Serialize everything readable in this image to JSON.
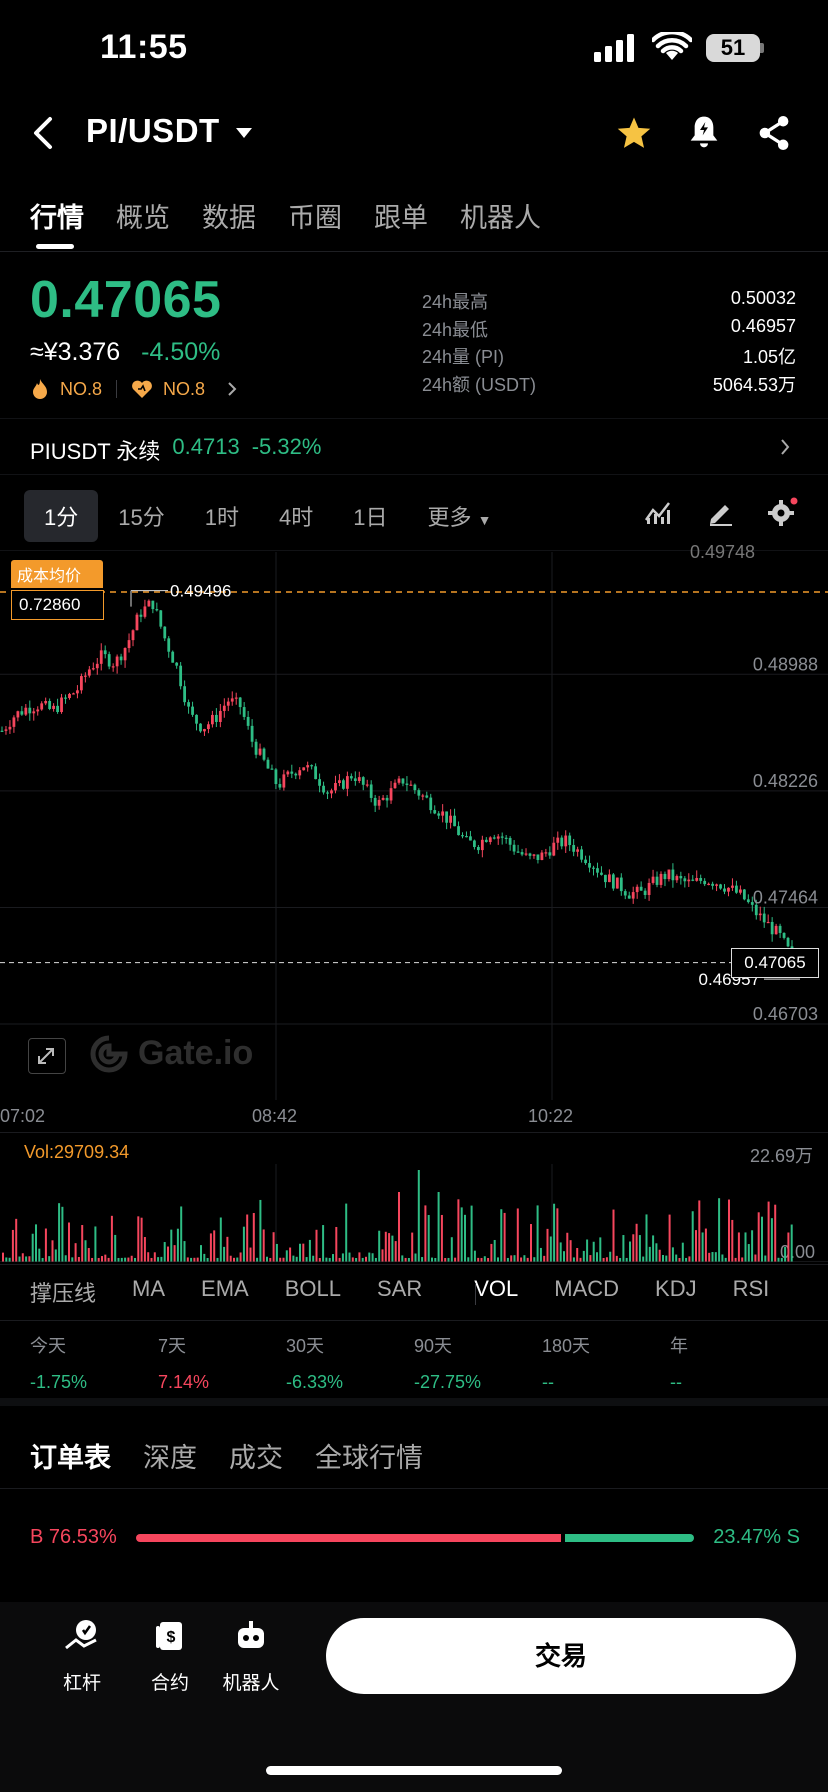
{
  "status_bar": {
    "time": "11:55",
    "battery": "51"
  },
  "header": {
    "pair": "PI/USDT"
  },
  "tabs": [
    "行情",
    "概览",
    "数据",
    "币圈",
    "跟单",
    "机器人"
  ],
  "price": {
    "last": "0.47065",
    "cny": "≈¥3.376",
    "change": "-4.50%",
    "rank_hot": "NO.8",
    "rank_fav": "NO.8"
  },
  "stats": [
    {
      "label": "24h最高",
      "value": "0.50032"
    },
    {
      "label": "24h最低",
      "value": "0.46957"
    },
    {
      "label": "24h量 (PI)",
      "value": "1.05亿"
    },
    {
      "label": "24h额 (USDT)",
      "value": "5064.53万"
    }
  ],
  "perpetual": {
    "name": "PIUSDT 永续",
    "price": "0.4713",
    "change": "-5.32%"
  },
  "intervals": [
    "1分",
    "15分",
    "1时",
    "4时",
    "1日",
    "更多"
  ],
  "chart": {
    "cost_label": "成本均价",
    "cost_value": "0.72860",
    "high_marker": "0.49496",
    "low_marker": "0.46957",
    "last_box": "0.47065",
    "y_labels": [
      "0.49748",
      "0.48988",
      "0.48226",
      "0.47464",
      "0.46703"
    ],
    "x_labels": [
      "07:02",
      "08:42",
      "10:22"
    ],
    "watermark": "Gate.io",
    "vol_label": "Vol:29709.34",
    "vol_max": "22.69万",
    "vol_min": "0.00"
  },
  "chart_data": {
    "type": "candlestick",
    "x_ticks": [
      "07:02",
      "08:42",
      "10:22"
    ],
    "ylim": [
      0.46703,
      0.49748
    ],
    "y_ticks": [
      0.49748,
      0.48988,
      0.48226,
      0.47464,
      0.46703
    ],
    "close_path": [
      0.4858,
      0.4868,
      0.4873,
      0.4875,
      0.4871,
      0.4878,
      0.4885,
      0.4899,
      0.4907,
      0.4902,
      0.4915,
      0.4935,
      0.4942,
      0.4918,
      0.4898,
      0.4868,
      0.486,
      0.4866,
      0.4878,
      0.4874,
      0.485,
      0.4836,
      0.4822,
      0.483,
      0.4836,
      0.4829,
      0.4818,
      0.4822,
      0.483,
      0.482,
      0.481,
      0.4818,
      0.4826,
      0.4819,
      0.4812,
      0.4805,
      0.4796,
      0.4785,
      0.4784,
      0.4792,
      0.4788,
      0.478,
      0.4774,
      0.4776,
      0.4783,
      0.4786,
      0.4779,
      0.4772,
      0.4763,
      0.4758,
      0.4752,
      0.4752,
      0.4759,
      0.4764,
      0.476,
      0.4758,
      0.4761,
      0.4759,
      0.4755,
      0.475,
      0.474,
      0.4732,
      0.4724,
      0.471
    ],
    "high": 0.49496,
    "low": 0.46957,
    "last": 0.47065,
    "cost_average": 0.7286
  },
  "indicators": [
    "撑压线",
    "MA",
    "EMA",
    "BOLL",
    "SAR",
    "VOL",
    "MACD",
    "KDJ",
    "RSI"
  ],
  "performance": [
    {
      "label": "今天",
      "value": "-1.75%",
      "color": "#2ebd85"
    },
    {
      "label": "7天",
      "value": "7.14%",
      "color": "#f6465d"
    },
    {
      "label": "30天",
      "value": "-6.33%",
      "color": "#2ebd85"
    },
    {
      "label": "90天",
      "value": "-27.75%",
      "color": "#2ebd85"
    },
    {
      "label": "180天",
      "value": "--",
      "color": "#2ebd85"
    },
    {
      "label": "年",
      "value": "--",
      "color": "#2ebd85"
    }
  ],
  "book_tabs": [
    "订单表",
    "深度",
    "成交",
    "全球行情"
  ],
  "ratio": {
    "buy": "76.53%",
    "sell": "23.47%",
    "buy_prefix": "B",
    "sell_suffix": "S",
    "buy_fraction": 0.7653
  },
  "bottom_nav": [
    {
      "label": "杠杆",
      "icon": "leverage-icon"
    },
    {
      "label": "合约",
      "icon": "contract-icon"
    },
    {
      "label": "机器人",
      "icon": "robot-icon"
    }
  ],
  "trade_button": "交易",
  "colors": {
    "up": "#f6465d",
    "down": "#2ebd85",
    "accent": "#f39a2b"
  }
}
